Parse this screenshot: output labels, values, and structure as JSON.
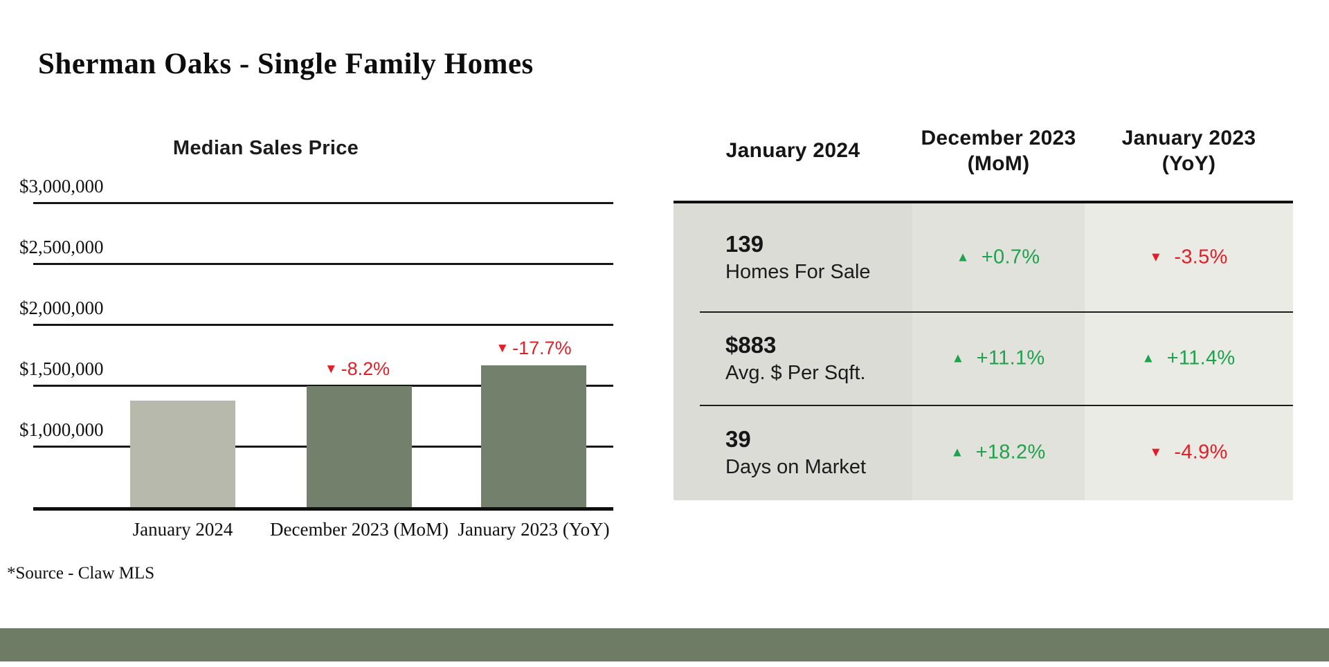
{
  "page": {
    "title": "Sherman Oaks - Single Family Homes",
    "source_note": "*Source - Claw MLS"
  },
  "chart_data": {
    "type": "bar",
    "title": "Median Sales Price",
    "categories": [
      "January 2024",
      "December 2023 (MoM)",
      "January 2023 (YoY)"
    ],
    "values": [
      1372500,
      1495000,
      1667500
    ],
    "bar_colors": [
      "#B6B9AB",
      "#73806B",
      "#73806B"
    ],
    "annotations": [
      null,
      {
        "dir": "down",
        "text": "-8.2%"
      },
      {
        "dir": "down",
        "text": "-17.7%"
      }
    ],
    "annotation_color": "#E41E26",
    "y_ticks": [
      {
        "label": "$3,000,000",
        "value": 3000000
      },
      {
        "label": "$2,500,000",
        "value": 2500000
      },
      {
        "label": "$2,000,000",
        "value": 2000000
      },
      {
        "label": "$1,500,000",
        "value": 1500000
      },
      {
        "label": "$1,000,000",
        "value": 1000000
      }
    ],
    "ylim": [
      500000,
      3250000
    ],
    "grid": true,
    "legend": "none"
  },
  "table": {
    "columns": [
      {
        "label": "January 2024",
        "sub": ""
      },
      {
        "label": "December 2023",
        "sub": "(MoM)"
      },
      {
        "label": "January 2023",
        "sub": "(YoY)"
      }
    ],
    "rows": [
      {
        "value": "139",
        "label": "Homes For Sale",
        "mom": {
          "dir": "up",
          "text": "+0.7%"
        },
        "yoy": {
          "dir": "down",
          "text": "-3.5%"
        }
      },
      {
        "value": "$883",
        "label": "Avg. $ Per Sqft.",
        "mom": {
          "dir": "up",
          "text": "+11.1%"
        },
        "yoy": {
          "dir": "up",
          "text": "+11.4%"
        }
      },
      {
        "value": "39",
        "label": "Days on Market",
        "mom": {
          "dir": "up",
          "text": "+18.2%"
        },
        "yoy": {
          "dir": "down",
          "text": "-4.9%"
        }
      }
    ],
    "col_colors": [
      "#DBDCD5",
      "#E1E2DB",
      "#EBEBE6"
    ],
    "up_color": "#1FA24C",
    "down_color": "#E41E26"
  },
  "footer": {
    "color": "#6E7B65"
  }
}
